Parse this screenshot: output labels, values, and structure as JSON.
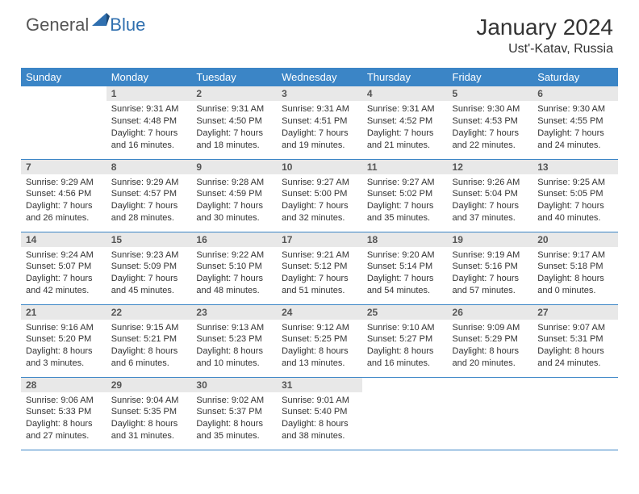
{
  "logo": {
    "general": "General",
    "blue": "Blue"
  },
  "title": "January 2024",
  "location": "Ust'-Katav, Russia",
  "colors": {
    "header_bg": "#3b85c6",
    "header_text": "#ffffff",
    "daynum_bg": "#e8e8e8",
    "body_text": "#333333",
    "logo_gray": "#555555",
    "logo_blue": "#2f6faf",
    "border": "#3b85c6"
  },
  "typography": {
    "title_fontsize": 28,
    "location_fontsize": 16,
    "header_fontsize": 13,
    "daynum_fontsize": 12,
    "content_fontsize": 11
  },
  "weekdays": [
    "Sunday",
    "Monday",
    "Tuesday",
    "Wednesday",
    "Thursday",
    "Friday",
    "Saturday"
  ],
  "weeks": [
    [
      null,
      {
        "n": "1",
        "sr": "9:31 AM",
        "ss": "4:48 PM",
        "dl": "7 hours and 16 minutes."
      },
      {
        "n": "2",
        "sr": "9:31 AM",
        "ss": "4:50 PM",
        "dl": "7 hours and 18 minutes."
      },
      {
        "n": "3",
        "sr": "9:31 AM",
        "ss": "4:51 PM",
        "dl": "7 hours and 19 minutes."
      },
      {
        "n": "4",
        "sr": "9:31 AM",
        "ss": "4:52 PM",
        "dl": "7 hours and 21 minutes."
      },
      {
        "n": "5",
        "sr": "9:30 AM",
        "ss": "4:53 PM",
        "dl": "7 hours and 22 minutes."
      },
      {
        "n": "6",
        "sr": "9:30 AM",
        "ss": "4:55 PM",
        "dl": "7 hours and 24 minutes."
      }
    ],
    [
      {
        "n": "7",
        "sr": "9:29 AM",
        "ss": "4:56 PM",
        "dl": "7 hours and 26 minutes."
      },
      {
        "n": "8",
        "sr": "9:29 AM",
        "ss": "4:57 PM",
        "dl": "7 hours and 28 minutes."
      },
      {
        "n": "9",
        "sr": "9:28 AM",
        "ss": "4:59 PM",
        "dl": "7 hours and 30 minutes."
      },
      {
        "n": "10",
        "sr": "9:27 AM",
        "ss": "5:00 PM",
        "dl": "7 hours and 32 minutes."
      },
      {
        "n": "11",
        "sr": "9:27 AM",
        "ss": "5:02 PM",
        "dl": "7 hours and 35 minutes."
      },
      {
        "n": "12",
        "sr": "9:26 AM",
        "ss": "5:04 PM",
        "dl": "7 hours and 37 minutes."
      },
      {
        "n": "13",
        "sr": "9:25 AM",
        "ss": "5:05 PM",
        "dl": "7 hours and 40 minutes."
      }
    ],
    [
      {
        "n": "14",
        "sr": "9:24 AM",
        "ss": "5:07 PM",
        "dl": "7 hours and 42 minutes."
      },
      {
        "n": "15",
        "sr": "9:23 AM",
        "ss": "5:09 PM",
        "dl": "7 hours and 45 minutes."
      },
      {
        "n": "16",
        "sr": "9:22 AM",
        "ss": "5:10 PM",
        "dl": "7 hours and 48 minutes."
      },
      {
        "n": "17",
        "sr": "9:21 AM",
        "ss": "5:12 PM",
        "dl": "7 hours and 51 minutes."
      },
      {
        "n": "18",
        "sr": "9:20 AM",
        "ss": "5:14 PM",
        "dl": "7 hours and 54 minutes."
      },
      {
        "n": "19",
        "sr": "9:19 AM",
        "ss": "5:16 PM",
        "dl": "7 hours and 57 minutes."
      },
      {
        "n": "20",
        "sr": "9:17 AM",
        "ss": "5:18 PM",
        "dl": "8 hours and 0 minutes."
      }
    ],
    [
      {
        "n": "21",
        "sr": "9:16 AM",
        "ss": "5:20 PM",
        "dl": "8 hours and 3 minutes."
      },
      {
        "n": "22",
        "sr": "9:15 AM",
        "ss": "5:21 PM",
        "dl": "8 hours and 6 minutes."
      },
      {
        "n": "23",
        "sr": "9:13 AM",
        "ss": "5:23 PM",
        "dl": "8 hours and 10 minutes."
      },
      {
        "n": "24",
        "sr": "9:12 AM",
        "ss": "5:25 PM",
        "dl": "8 hours and 13 minutes."
      },
      {
        "n": "25",
        "sr": "9:10 AM",
        "ss": "5:27 PM",
        "dl": "8 hours and 16 minutes."
      },
      {
        "n": "26",
        "sr": "9:09 AM",
        "ss": "5:29 PM",
        "dl": "8 hours and 20 minutes."
      },
      {
        "n": "27",
        "sr": "9:07 AM",
        "ss": "5:31 PM",
        "dl": "8 hours and 24 minutes."
      }
    ],
    [
      {
        "n": "28",
        "sr": "9:06 AM",
        "ss": "5:33 PM",
        "dl": "8 hours and 27 minutes."
      },
      {
        "n": "29",
        "sr": "9:04 AM",
        "ss": "5:35 PM",
        "dl": "8 hours and 31 minutes."
      },
      {
        "n": "30",
        "sr": "9:02 AM",
        "ss": "5:37 PM",
        "dl": "8 hours and 35 minutes."
      },
      {
        "n": "31",
        "sr": "9:01 AM",
        "ss": "5:40 PM",
        "dl": "8 hours and 38 minutes."
      },
      null,
      null,
      null
    ]
  ],
  "labels": {
    "sunrise": "Sunrise:",
    "sunset": "Sunset:",
    "daylight": "Daylight:"
  }
}
